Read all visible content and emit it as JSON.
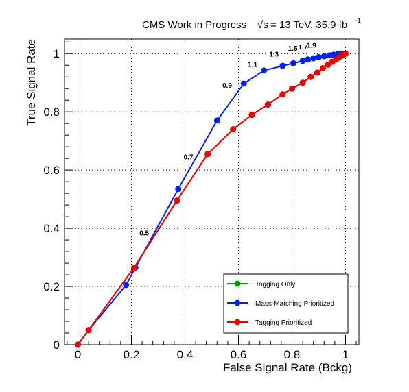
{
  "chart_data": {
    "type": "line",
    "title": "CMS Work in Progress",
    "title_energy": "= 13 TeV, 35.9 fb",
    "title_sqrt": "√s",
    "title_exponent": "-1",
    "xlabel": "False Signal Rate (Bckg)",
    "ylabel": "True Signal Rate",
    "xlim": [
      -0.05,
      1.05
    ],
    "ylim": [
      0,
      1.05
    ],
    "grid": true,
    "legend_position": "bottom-right",
    "x_ticks": [
      "0",
      "0.2",
      "0.4",
      "0.6",
      "0.8",
      "1"
    ],
    "y_ticks": [
      "0",
      "0.2",
      "0.4",
      "0.6",
      "0.8",
      "1"
    ],
    "series": [
      {
        "name": "Tagging Only",
        "color": "#009900",
        "x": [
          0,
          0.04,
          0.21,
          0.37,
          0.485,
          0.58,
          0.65,
          0.71,
          0.765,
          0.8,
          0.84,
          0.87,
          0.895,
          0.915,
          0.935,
          0.95,
          0.965,
          0.975,
          0.985,
          0.993,
          1.0
        ],
        "y": [
          0,
          0.05,
          0.265,
          0.495,
          0.655,
          0.74,
          0.79,
          0.825,
          0.86,
          0.88,
          0.9,
          0.92,
          0.935,
          0.95,
          0.962,
          0.972,
          0.98,
          0.987,
          0.993,
          0.997,
          1.0
        ]
      },
      {
        "name": "Mass-Matching Prioritized",
        "color": "#0022ee",
        "x": [
          0,
          0.04,
          0.18,
          0.215,
          0.375,
          0.52,
          0.62,
          0.695,
          0.765,
          0.805,
          0.84,
          0.86,
          0.88,
          0.9,
          0.92,
          0.94,
          0.955,
          0.97,
          0.98,
          0.99,
          1.0
        ],
        "y": [
          0,
          0.05,
          0.205,
          0.265,
          0.535,
          0.77,
          0.897,
          0.942,
          0.958,
          0.967,
          0.975,
          0.98,
          0.984,
          0.988,
          0.991,
          0.994,
          0.996,
          0.998,
          0.999,
          1.0,
          1.0
        ]
      },
      {
        "name": "Tagging Prioritized",
        "color": "#ee0000",
        "x": [
          0,
          0.04,
          0.21,
          0.37,
          0.485,
          0.58,
          0.65,
          0.71,
          0.765,
          0.8,
          0.84,
          0.87,
          0.895,
          0.915,
          0.935,
          0.95,
          0.965,
          0.975,
          0.985,
          0.993,
          1.0
        ],
        "y": [
          0,
          0.05,
          0.265,
          0.495,
          0.655,
          0.74,
          0.79,
          0.825,
          0.86,
          0.88,
          0.9,
          0.92,
          0.935,
          0.95,
          0.962,
          0.972,
          0.98,
          0.987,
          0.993,
          0.997,
          1.0
        ]
      }
    ],
    "annotations": [
      {
        "text": "0.5",
        "x": 0.23,
        "y": 0.375
      },
      {
        "text": "0.7",
        "x": 0.395,
        "y": 0.637
      },
      {
        "text": "0.9",
        "x": 0.54,
        "y": 0.883
      },
      {
        "text": "1.1",
        "x": 0.635,
        "y": 0.955
      },
      {
        "text": "1.3",
        "x": 0.715,
        "y": 0.99
      },
      {
        "text": "1.5",
        "x": 0.785,
        "y": 1.01
      },
      {
        "text": "1.7",
        "x": 0.823,
        "y": 1.015
      },
      {
        "text": "1.9",
        "x": 0.855,
        "y": 1.02
      }
    ]
  }
}
